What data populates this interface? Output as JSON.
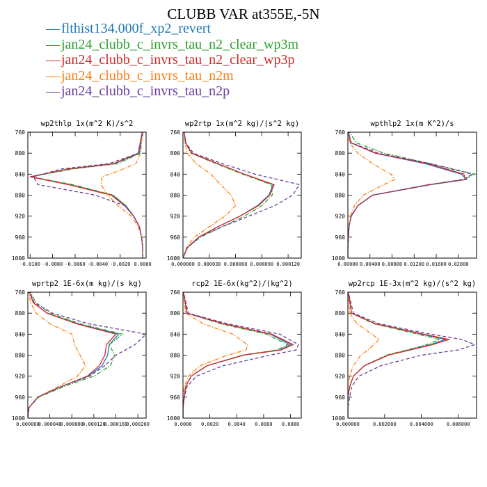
{
  "title": "CLUBB VAR at355E,-5N",
  "legend": [
    {
      "label": "flthist134.000f_xp2_revert",
      "color": "#1f77b4",
      "dash": "solid"
    },
    {
      "label": "jan24_clubb_c_invrs_tau_n2_clear_wp3m",
      "color": "#2ca02c",
      "dash": "dashdot"
    },
    {
      "label": "jan24_clubb_c_invrs_tau_n2_clear_wp3p",
      "color": "#d62728",
      "dash": "solid"
    },
    {
      "label": "jan24_clubb_c_invrs_tau_n2m",
      "color": "#ff7f0e",
      "dash": "dashdot"
    },
    {
      "label": "jan24_clubb_c_invrs_tau_n2p",
      "color": "#6a3d9a",
      "dash": "dashed"
    }
  ],
  "chart_data": [
    {
      "type": "line",
      "title": "wp2thlp  1x(m^2 K)/s^2",
      "xlim": [
        -0.0102,
        0.0003
      ],
      "ylim": [
        760,
        1000
      ],
      "xticks": [
        -0.01,
        -0.008,
        -0.006,
        -0.004,
        -0.002,
        0.0
      ],
      "xtick_labels": [
        "-0.0100",
        "-0.0080",
        "-0.0060",
        "-0.0040",
        "-0.0020",
        "0.0000"
      ],
      "yticks": [
        760,
        800,
        840,
        880,
        920,
        960,
        1000
      ],
      "y": [
        755,
        800,
        820,
        830,
        845,
        860,
        880,
        900,
        920,
        940,
        960,
        980,
        1000
      ],
      "series": [
        {
          "values": [
            0.0,
            -0.0003,
            -0.0025,
            -0.0065,
            -0.01,
            -0.0065,
            -0.0027,
            -0.0015,
            -0.0008,
            -0.0003,
            -0.0001,
            0.0,
            0.0
          ]
        },
        {
          "values": [
            0.0,
            -0.0002,
            -0.0022,
            -0.0062,
            -0.0099,
            -0.0062,
            -0.0026,
            -0.0015,
            -0.0008,
            -0.0003,
            -0.0001,
            0.0,
            0.0
          ]
        },
        {
          "values": [
            0.0,
            -0.0004,
            -0.0026,
            -0.0066,
            -0.01,
            -0.0066,
            -0.0028,
            -0.0016,
            -0.0008,
            -0.0003,
            -0.0001,
            0.0,
            0.0
          ]
        },
        {
          "values": [
            0.0,
            -0.0002,
            -0.0006,
            -0.0017,
            -0.0036,
            -0.0037,
            -0.0031,
            -0.0022,
            -0.001,
            -0.0004,
            -0.0001,
            0.0,
            0.0
          ]
        },
        {
          "values": [
            0.0,
            -0.0004,
            -0.003,
            -0.0072,
            -0.0097,
            -0.0093,
            -0.0042,
            -0.0016,
            -0.0008,
            -0.0003,
            -0.0001,
            0.0,
            0.0
          ]
        }
      ]
    },
    {
      "type": "line",
      "title": "wp2rtp  1x(m^2 kg)/(s^2 kg)",
      "xlim": [
        0.0,
        0.000135
      ],
      "ylim": [
        760,
        1000
      ],
      "xticks": [
        0.0,
        3e-05,
        6e-05,
        9e-05,
        0.00012
      ],
      "xtick_labels": [
        "0.000000",
        "0.000030",
        "0.000060",
        "0.000090",
        "0.000120"
      ],
      "yticks": [
        760,
        800,
        840,
        880,
        920,
        960,
        1000
      ],
      "y": [
        755,
        780,
        800,
        820,
        840,
        860,
        880,
        900,
        920,
        940,
        960,
        980,
        1000
      ],
      "series": [
        {
          "values": [
            1e-06,
            3e-06,
            1e-05,
            4e-05,
            7e-05,
            0.000103,
            9.8e-05,
            8.5e-05,
            6.5e-05,
            4e-05,
            1.8e-05,
            5e-06,
            0.0
          ]
        },
        {
          "values": [
            1e-06,
            3e-06,
            9e-06,
            3.8e-05,
            6.8e-05,
            0.000101,
            0.000102,
            9e-05,
            7e-05,
            4.5e-05,
            2e-05,
            5e-06,
            0.0
          ]
        },
        {
          "values": [
            1e-06,
            3e-06,
            1e-05,
            4e-05,
            7e-05,
            0.000104,
            9.9e-05,
            8.6e-05,
            6.5e-05,
            4e-05,
            1.8e-05,
            5e-06,
            0.0
          ]
        },
        {
          "values": [
            1e-06,
            2e-06,
            5e-06,
            1.5e-05,
            3.2e-05,
            4.3e-05,
            5.5e-05,
            6e-05,
            4.8e-05,
            3e-05,
            1.3e-05,
            4e-06,
            0.0
          ]
        },
        {
          "values": [
            1e-06,
            3e-06,
            1.2e-05,
            4.5e-05,
            8.2e-05,
            0.000133,
            0.000125,
            0.000105,
            7.5e-05,
            4.5e-05,
            1.8e-05,
            5e-06,
            0.0
          ]
        }
      ]
    },
    {
      "type": "line",
      "title": "wpthlp2  1x(m K^2)/s",
      "xlim": [
        0.0,
        0.0233
      ],
      "ylim": [
        760,
        1000
      ],
      "xticks": [
        0.0,
        0.004,
        0.008,
        0.012,
        0.016,
        0.02
      ],
      "xtick_labels": [
        "0.00000",
        "0.00400",
        "0.00800",
        "0.01200",
        "0.01600",
        "0.02000"
      ],
      "yticks": [
        760,
        800,
        840,
        880,
        920,
        960,
        1000
      ],
      "y": [
        755,
        780,
        800,
        820,
        840,
        850,
        860,
        880,
        900,
        920,
        940,
        960,
        980,
        1000
      ],
      "series": [
        {
          "values": [
            0.0,
            0.0005,
            0.005,
            0.014,
            0.0205,
            0.0215,
            0.015,
            0.0045,
            0.0018,
            0.0006,
            0.0002,
            0.0001,
            0.0,
            0.0
          ]
        },
        {
          "values": [
            0.0,
            0.0015,
            0.0065,
            0.015,
            0.023,
            0.021,
            0.0145,
            0.0045,
            0.0018,
            0.0006,
            0.0002,
            0.0001,
            0.0,
            0.0
          ]
        },
        {
          "values": [
            0.0,
            0.0005,
            0.005,
            0.0145,
            0.021,
            0.0213,
            0.0148,
            0.0045,
            0.0018,
            0.0006,
            0.0002,
            0.0001,
            0.0,
            0.0
          ]
        },
        {
          "values": [
            0.0,
            0.0003,
            0.0018,
            0.0045,
            0.0078,
            0.0085,
            0.0065,
            0.0028,
            0.0012,
            0.0005,
            0.0002,
            0.0001,
            0.0,
            0.0
          ]
        },
        {
          "values": [
            0.0,
            0.0006,
            0.0055,
            0.015,
            0.0225,
            0.021,
            0.015,
            0.0045,
            0.0018,
            0.0006,
            0.0002,
            0.0001,
            0.0,
            0.0
          ]
        }
      ]
    },
    {
      "type": "line",
      "title": "wprtp2  1E-6x(m kg)/(s kg)",
      "xlim": [
        0.0,
        0.000215
      ],
      "ylim": [
        760,
        1000
      ],
      "xticks": [
        0.0,
        4e-05,
        8e-05,
        0.00012,
        0.00016,
        0.0002
      ],
      "xtick_labels": [
        "0.000000",
        "0.000040",
        "0.000080",
        "0.000120",
        "0.000160",
        "0.000200"
      ],
      "yticks": [
        760,
        800,
        840,
        880,
        920,
        960,
        1000
      ],
      "y": [
        755,
        780,
        800,
        820,
        840,
        860,
        880,
        900,
        920,
        940,
        960,
        980,
        1000
      ],
      "series": [
        {
          "values": [
            1e-06,
            1e-05,
            3.5e-05,
            9e-05,
            0.000165,
            0.000148,
            0.000145,
            0.000135,
            0.00011,
            6e-05,
            1.8e-05,
            2e-06,
            0.0
          ]
        },
        {
          "values": [
            2e-06,
            1.5e-05,
            4e-05,
            9.5e-05,
            0.000172,
            0.000148,
            0.000158,
            0.00015,
            0.00012,
            6.5e-05,
            2e-05,
            2e-06,
            0.0
          ]
        },
        {
          "values": [
            1e-06,
            1e-05,
            3.5e-05,
            8.8e-05,
            0.00016,
            0.000143,
            0.00014,
            0.00013,
            0.000108,
            6e-05,
            1.8e-05,
            2e-06,
            0.0
          ]
        },
        {
          "values": [
            1e-06,
            5e-06,
            1.5e-05,
            4e-05,
            8e-05,
            8.5e-05,
            9.5e-05,
            0.000105,
            9e-05,
            5.5e-05,
            1.8e-05,
            2e-06,
            0.0
          ]
        },
        {
          "values": [
            1e-06,
            1.2e-05,
            4.5e-05,
            0.00011,
            0.000215,
            0.000195,
            0.00016,
            0.00014,
            0.000112,
            6e-05,
            1.8e-05,
            2e-06,
            0.0
          ]
        }
      ]
    },
    {
      "type": "line",
      "title": "rcp2  1E-6x(kg^2)/(kg^2)",
      "xlim": [
        0.0,
        0.0088
      ],
      "ylim": [
        760,
        1000
      ],
      "xticks": [
        0.0,
        0.002,
        0.004,
        0.006,
        0.008
      ],
      "xtick_labels": [
        "0.0000",
        "0.0020",
        "0.0040",
        "0.0060",
        "0.0080"
      ],
      "yticks": [
        760,
        800,
        840,
        880,
        920,
        960,
        1000
      ],
      "y": [
        755,
        800,
        820,
        840,
        860,
        870,
        880,
        900,
        920,
        940,
        960,
        980,
        1000
      ],
      "series": [
        {
          "values": [
            0.0,
            0.0003,
            0.003,
            0.0065,
            0.008,
            0.0072,
            0.0045,
            0.0018,
            0.0006,
            0.0002,
            0.0001,
            0.0,
            0.0
          ]
        },
        {
          "values": [
            0.0,
            0.0003,
            0.0028,
            0.0062,
            0.0078,
            0.007,
            0.0044,
            0.0018,
            0.0006,
            0.0002,
            0.0001,
            0.0,
            0.0
          ]
        },
        {
          "values": [
            0.0,
            0.0003,
            0.003,
            0.0066,
            0.0082,
            0.0073,
            0.0045,
            0.0018,
            0.0006,
            0.0002,
            0.0001,
            0.0,
            0.0
          ]
        },
        {
          "values": [
            0.0,
            0.0002,
            0.0015,
            0.0037,
            0.0048,
            0.0047,
            0.0033,
            0.0013,
            0.0004,
            0.0001,
            0.0,
            0.0,
            0.0
          ]
        },
        {
          "values": [
            0.0,
            0.0004,
            0.0033,
            0.0072,
            0.0086,
            0.0084,
            0.0065,
            0.003,
            0.001,
            0.0003,
            0.0001,
            0.0,
            0.0
          ]
        }
      ]
    },
    {
      "type": "line",
      "title": "wp2rcp  1E-3x(m^2 kg)/(s^2 kg)",
      "xlim": [
        0.0,
        0.007
      ],
      "ylim": [
        760,
        1000
      ],
      "xticks": [
        0.0,
        0.002,
        0.004,
        0.006
      ],
      "xtick_labels": [
        "0.000000",
        "0.002000",
        "0.004000",
        "0.006000"
      ],
      "yticks": [
        760,
        800,
        840,
        880,
        920,
        960,
        1000
      ],
      "y": [
        755,
        800,
        820,
        840,
        850,
        860,
        870,
        880,
        900,
        920,
        940,
        960,
        980,
        1000
      ],
      "series": [
        {
          "values": [
            0.0,
            0.0002,
            0.0015,
            0.004,
            0.0053,
            0.0045,
            0.0033,
            0.0022,
            0.0009,
            0.0003,
            0.0001,
            0.0,
            0.0,
            0.0
          ]
        },
        {
          "values": [
            0.0,
            0.0002,
            0.0014,
            0.0038,
            0.005,
            0.0043,
            0.0032,
            0.0021,
            0.0009,
            0.0003,
            0.0001,
            0.0,
            0.0,
            0.0
          ]
        },
        {
          "values": [
            0.0,
            0.0002,
            0.0015,
            0.0041,
            0.0055,
            0.0046,
            0.0034,
            0.0022,
            0.0009,
            0.0003,
            0.0001,
            0.0,
            0.0,
            0.0
          ]
        },
        {
          "values": [
            0.0,
            0.0001,
            0.0005,
            0.0013,
            0.0017,
            0.0014,
            0.0011,
            0.0007,
            0.0003,
            0.0001,
            0.0,
            0.0,
            0.0,
            0.0
          ]
        },
        {
          "values": [
            0.0,
            0.0003,
            0.0017,
            0.0045,
            0.0062,
            0.0069,
            0.006,
            0.004,
            0.0018,
            0.0006,
            0.0002,
            0.0001,
            0.0,
            0.0
          ]
        }
      ]
    }
  ]
}
